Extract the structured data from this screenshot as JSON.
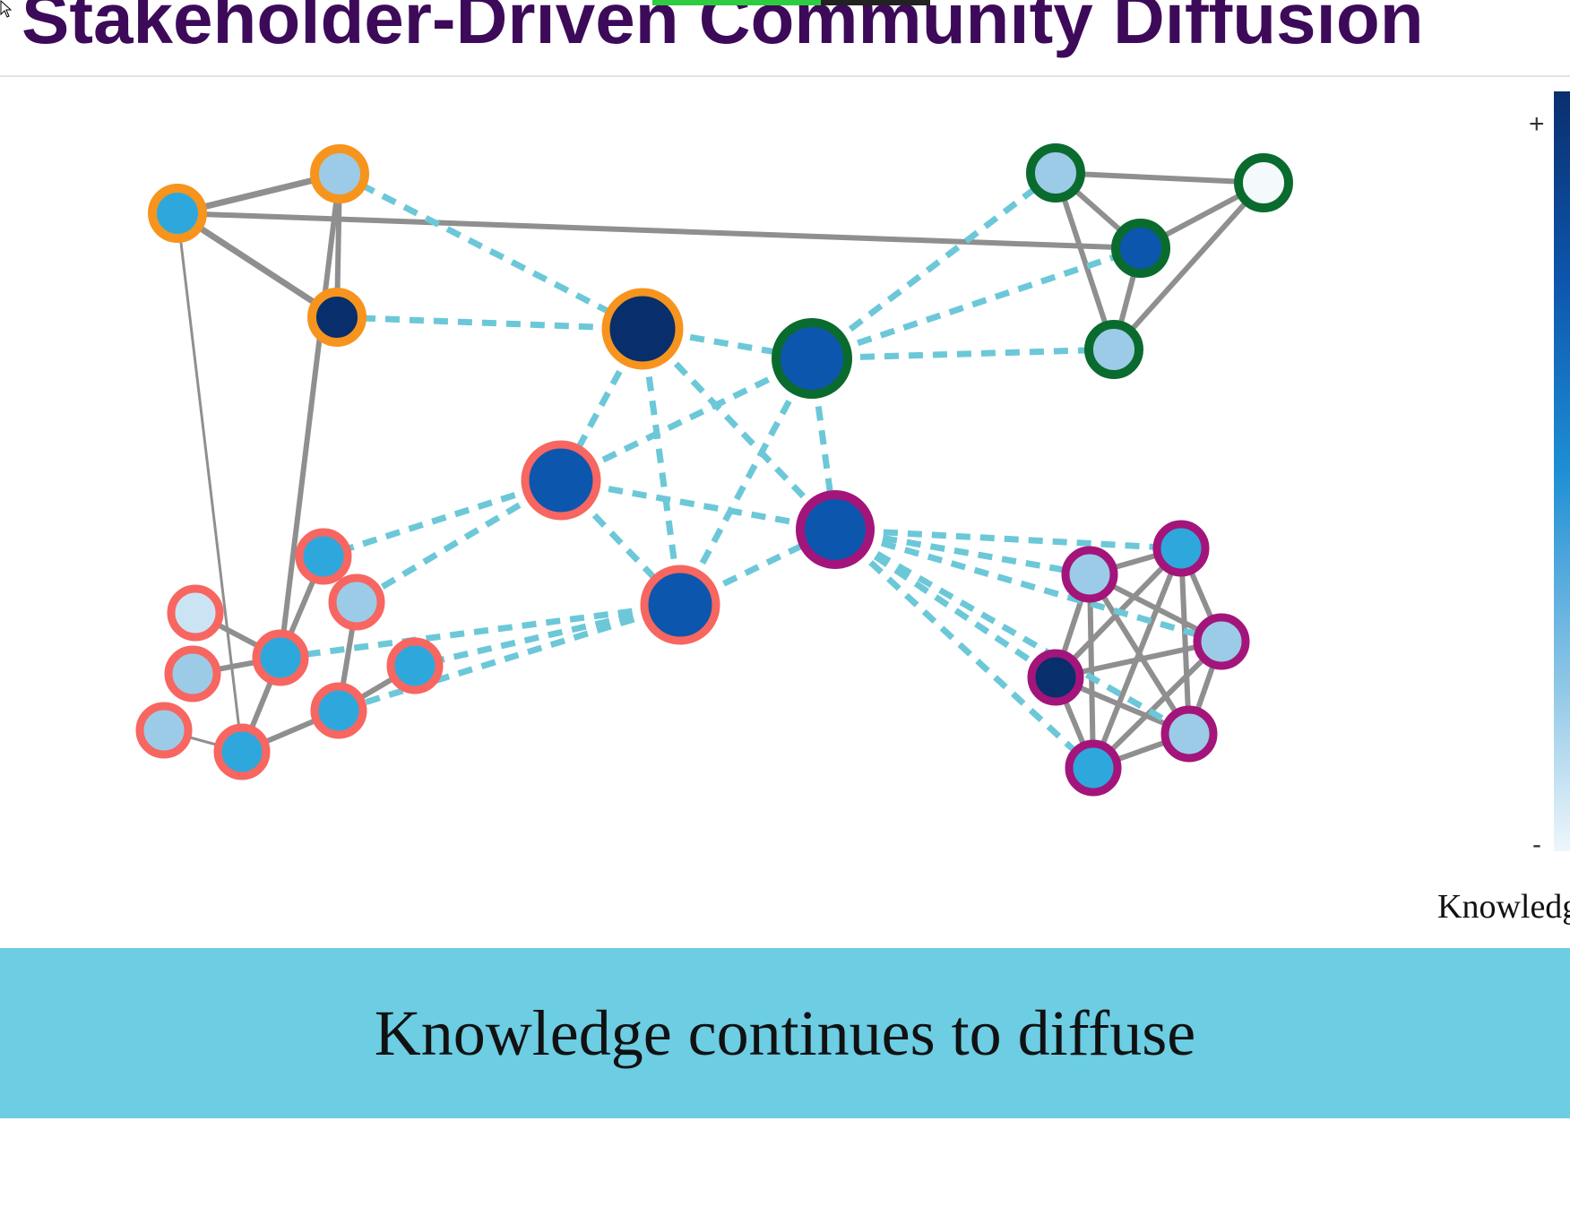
{
  "slide": {
    "title": "Stakeholder-Driven Community Diffusion",
    "caption": "Knowledge continues to diffuse"
  },
  "legend": {
    "plus": "+",
    "minus": "-",
    "label": "Knowledge"
  },
  "colors": {
    "title": "#3d0a59",
    "caption_band": "#6ccde3",
    "community_orange": "#f7941d",
    "community_green": "#0a6b2e",
    "community_coral": "#f76660",
    "community_magenta": "#a3157a",
    "within_link": "#8f8f8f",
    "cross_link": "#6cc8d8"
  }
}
